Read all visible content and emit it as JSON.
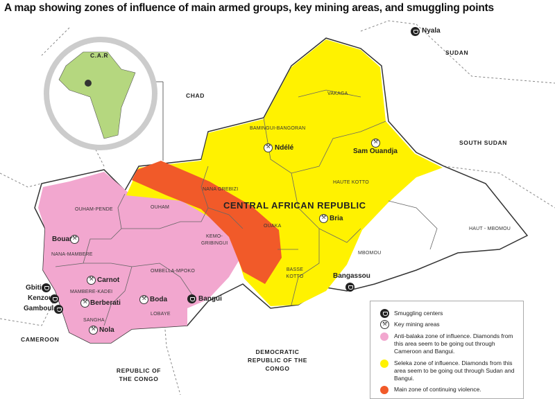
{
  "title": "A map showing zones of influence of main armed groups, key mining areas, and smuggling points",
  "inset": {
    "label": "C.A.R"
  },
  "countries": {
    "chad": "CHAD",
    "sudan": "SUDAN",
    "south_sudan": "SOUTH SUDAN",
    "cameroon": "CAMEROON",
    "drc": "DEMOCRATIC REPUBLIC OF THE CONGO",
    "roc": "REPUBLIC OF THE CONGO",
    "car": "CENTRAL AFRICAN REPUBLIC"
  },
  "prefectures": [
    "VAKAGA",
    "BAMINGUI-BANGORAN",
    "NANA GREBIZI",
    "HAUTE KOTTO",
    "OUHAM",
    "OUHAM-PENDE",
    "OUAKA",
    "KEMO-GRIBINGUI",
    "NANA-MAMBERE",
    "OMBELLA-MPOKO",
    "MAMBERE-KADEI",
    "LOBAYE",
    "SANGHA",
    "BASSE KOTTO",
    "MBOMOU",
    "HAUT - MBOMOU"
  ],
  "smuggling_centers": [
    "Nyala",
    "Bangui",
    "Gbiti",
    "Kenzou",
    "Gamboula",
    "Bangassou"
  ],
  "mining_areas": [
    "Ndélé",
    "Sam Ouandja",
    "Bria",
    "Bouar",
    "Carnot",
    "Berberati",
    "Boda",
    "Nola"
  ],
  "legend": {
    "smuggling": "Smuggling centers",
    "mining": "Key mining areas",
    "anti_balaka": "Anti-balaka zone of influence. Diamonds from this area seem to be going out through Cameroon and Bangui.",
    "seleka": "Seleka zone of influence. Diamonds from this area seem to be going out through Sudan and Bangui.",
    "violence": "Main zone of continuing violence."
  },
  "colors": {
    "anti_balaka": "#f2a7cf",
    "seleka": "#fff200",
    "violence": "#f15a29",
    "inset_land": "#b5d77f"
  }
}
